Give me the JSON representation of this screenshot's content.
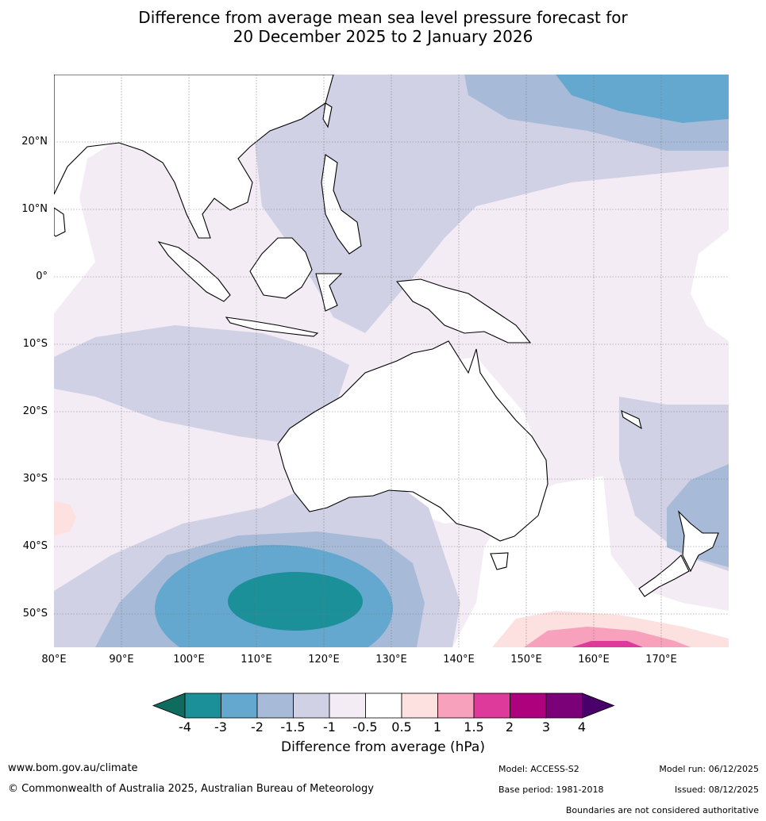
{
  "title_line1": "Difference from average mean sea level pressure forecast for",
  "title_line2": "20 December 2025 to 2 January 2026",
  "axes": {
    "lat_labels": [
      "20°N",
      "10°N",
      "0°",
      "10°S",
      "20°S",
      "30°S",
      "40°S",
      "50°S"
    ],
    "lon_labels": [
      "80°E",
      "90°E",
      "100°E",
      "110°E",
      "120°E",
      "130°E",
      "140°E",
      "150°E",
      "160°E",
      "170°E"
    ],
    "lat_range": [
      -55,
      30
    ],
    "lon_range": [
      80,
      180
    ]
  },
  "colorbar": {
    "title": "Difference from average (hPa)",
    "tick_labels": [
      "-4",
      "-3",
      "-2",
      "-1.5",
      "-1",
      "-0.5",
      "0.5",
      "1",
      "1.5",
      "2",
      "3",
      "4"
    ],
    "colors": [
      "#0e6b5e",
      "#1b9099",
      "#64a8cf",
      "#a7bbd9",
      "#d1d1e6",
      "#f4ecf5",
      "#ffffff",
      "#fde0e0",
      "#f8a1bd",
      "#de3a9c",
      "#ae017e",
      "#7a0177",
      "#49006a"
    ]
  },
  "footer": {
    "website": "www.bom.gov.au/climate",
    "copyright": "© Commonwealth of Australia 2025, Australian Bureau of Meteorology",
    "model": "Model: ACCESS-S2",
    "base_period": "Base period: 1981-2018",
    "model_run": "Model run: 06/12/2025",
    "issued": "Issued: 08/12/2025",
    "disclaimer": "Boundaries are not considered authoritative"
  }
}
